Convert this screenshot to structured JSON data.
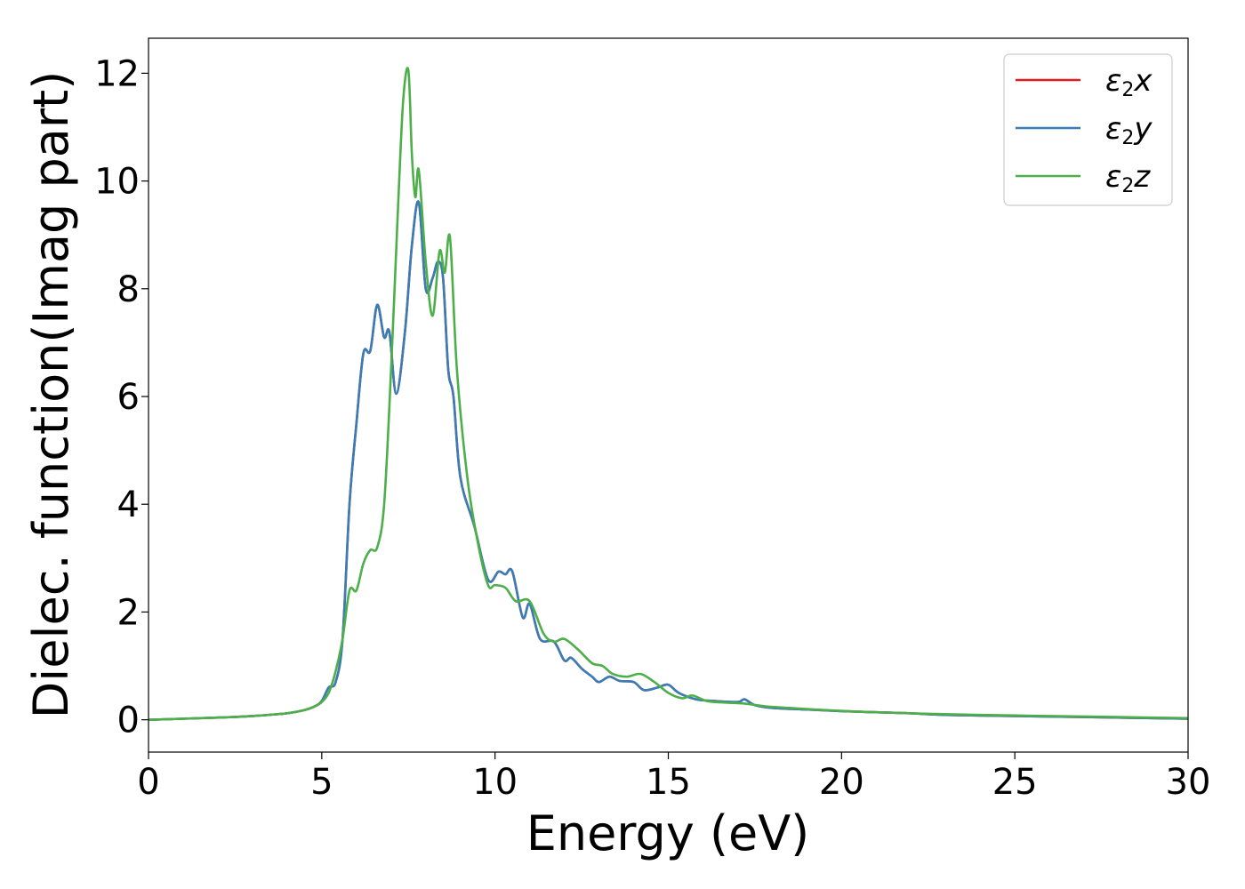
{
  "chart_data": {
    "type": "line",
    "title": "",
    "xlabel": "Energy (eV)",
    "ylabel": "Dielec. function(Imag part)",
    "xlim": [
      0,
      30
    ],
    "ylim": [
      -0.6,
      12.65
    ],
    "xticks": [
      "0",
      "5",
      "10",
      "15",
      "20",
      "25",
      "30"
    ],
    "yticks": [
      "0",
      "2",
      "4",
      "6",
      "8",
      "10",
      "12"
    ],
    "grid": false,
    "legend_position": "top-right",
    "series": [
      {
        "name": "ε2x",
        "legend": {
          "base": "ε",
          "sub": "2",
          "suffix": "x"
        },
        "color": "#e41a1c",
        "x": [
          0,
          2,
          3,
          4,
          4.5,
          4.8,
          5.0,
          5.2,
          5.4,
          5.6,
          5.8,
          6.0,
          6.2,
          6.4,
          6.6,
          6.8,
          6.95,
          7.15,
          7.4,
          7.6,
          7.8,
          8.0,
          8.2,
          8.35,
          8.5,
          8.65,
          8.8,
          9.0,
          9.4,
          9.8,
          10.1,
          10.3,
          10.5,
          10.8,
          11.0,
          11.3,
          11.7,
          12.0,
          12.2,
          12.5,
          12.8,
          13.0,
          13.3,
          13.6,
          14.0,
          14.3,
          14.7,
          15.0,
          15.3,
          15.8,
          16.3,
          17.0,
          17.2,
          17.5,
          18.0,
          19.0,
          20.0,
          21.0,
          22.0,
          23.0,
          25.0,
          27.0,
          30.0
        ],
        "y": [
          0,
          0.04,
          0.07,
          0.12,
          0.18,
          0.25,
          0.35,
          0.6,
          0.7,
          1.5,
          4.0,
          5.5,
          6.8,
          6.85,
          7.7,
          7.1,
          7.2,
          6.05,
          7.2,
          8.8,
          9.6,
          8.0,
          8.2,
          8.5,
          8.2,
          6.5,
          6.0,
          4.5,
          3.6,
          2.6,
          2.75,
          2.7,
          2.75,
          1.9,
          2.15,
          1.5,
          1.45,
          1.1,
          1.15,
          0.95,
          0.8,
          0.7,
          0.8,
          0.72,
          0.7,
          0.55,
          0.6,
          0.65,
          0.5,
          0.38,
          0.35,
          0.33,
          0.38,
          0.27,
          0.22,
          0.19,
          0.16,
          0.14,
          0.12,
          0.09,
          0.07,
          0.05,
          0.02
        ]
      },
      {
        "name": "ε2y",
        "legend": {
          "base": "ε",
          "sub": "2",
          "suffix": "y"
        },
        "color": "#377eb8",
        "x": [
          0,
          2,
          3,
          4,
          4.5,
          4.8,
          5.0,
          5.2,
          5.4,
          5.6,
          5.8,
          6.0,
          6.2,
          6.4,
          6.6,
          6.8,
          6.95,
          7.15,
          7.4,
          7.6,
          7.8,
          8.0,
          8.2,
          8.35,
          8.5,
          8.65,
          8.8,
          9.0,
          9.4,
          9.8,
          10.1,
          10.3,
          10.5,
          10.8,
          11.0,
          11.3,
          11.7,
          12.0,
          12.2,
          12.5,
          12.8,
          13.0,
          13.3,
          13.6,
          14.0,
          14.3,
          14.7,
          15.0,
          15.3,
          15.8,
          16.3,
          17.0,
          17.2,
          17.5,
          18.0,
          19.0,
          20.0,
          21.0,
          22.0,
          23.0,
          25.0,
          27.0,
          30.0
        ],
        "y": [
          0,
          0.04,
          0.07,
          0.12,
          0.18,
          0.25,
          0.35,
          0.6,
          0.7,
          1.5,
          4.0,
          5.5,
          6.8,
          6.85,
          7.7,
          7.1,
          7.2,
          6.05,
          7.2,
          8.8,
          9.6,
          8.0,
          8.2,
          8.5,
          8.2,
          6.5,
          6.0,
          4.5,
          3.6,
          2.6,
          2.75,
          2.7,
          2.75,
          1.9,
          2.15,
          1.5,
          1.45,
          1.1,
          1.15,
          0.95,
          0.8,
          0.7,
          0.8,
          0.72,
          0.7,
          0.55,
          0.6,
          0.65,
          0.5,
          0.38,
          0.35,
          0.33,
          0.38,
          0.27,
          0.22,
          0.19,
          0.16,
          0.14,
          0.12,
          0.09,
          0.07,
          0.05,
          0.02
        ]
      },
      {
        "name": "ε2z",
        "legend": {
          "base": "ε",
          "sub": "2",
          "suffix": "z"
        },
        "color": "#4daf4a",
        "x": [
          0,
          2,
          3,
          4,
          4.5,
          4.8,
          5.0,
          5.2,
          5.4,
          5.6,
          5.8,
          6.0,
          6.2,
          6.4,
          6.6,
          6.8,
          7.0,
          7.2,
          7.35,
          7.5,
          7.6,
          7.7,
          7.8,
          8.0,
          8.2,
          8.4,
          8.55,
          8.7,
          8.9,
          9.2,
          9.5,
          9.8,
          10.0,
          10.3,
          10.6,
          11.0,
          11.4,
          11.7,
          12.0,
          12.4,
          12.8,
          13.1,
          13.4,
          13.8,
          14.2,
          14.6,
          15.0,
          15.4,
          15.7,
          16.1,
          16.6,
          17.2,
          17.8,
          18.5,
          19.5,
          20.5,
          21.5,
          22.5,
          24.0,
          26.0,
          28.0,
          30.0
        ],
        "y": [
          0,
          0.04,
          0.07,
          0.12,
          0.18,
          0.25,
          0.33,
          0.5,
          0.9,
          1.5,
          2.4,
          2.4,
          2.9,
          3.15,
          3.2,
          4.0,
          6.5,
          9.5,
          11.5,
          12.05,
          10.5,
          9.7,
          10.2,
          8.5,
          7.5,
          8.7,
          8.3,
          8.95,
          6.5,
          4.5,
          3.3,
          2.5,
          2.5,
          2.45,
          2.2,
          2.2,
          1.6,
          1.45,
          1.5,
          1.3,
          1.05,
          1.0,
          0.85,
          0.8,
          0.85,
          0.7,
          0.5,
          0.4,
          0.45,
          0.35,
          0.32,
          0.3,
          0.25,
          0.22,
          0.18,
          0.15,
          0.13,
          0.11,
          0.09,
          0.07,
          0.05,
          0.03
        ]
      }
    ]
  }
}
